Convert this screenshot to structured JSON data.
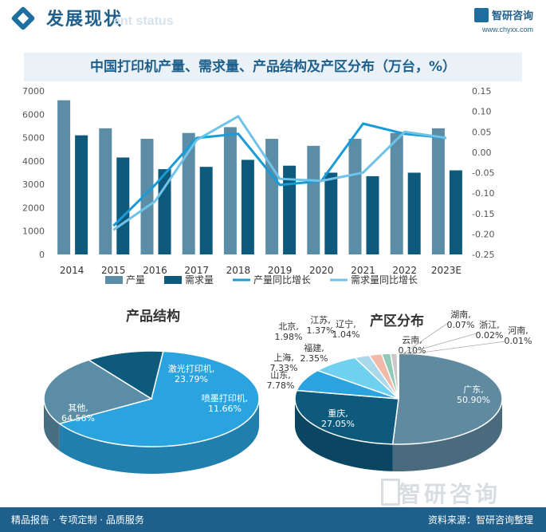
{
  "header": {
    "title": "发展现状",
    "subtitle": "ent status",
    "brand_name": "智研咨询",
    "brand_url": "www.chyxx.com"
  },
  "chart_title": "中国打印机产量、需求量、产品结构及产区分布（万台，%）",
  "chart_data": [
    {
      "type": "bar",
      "categories": [
        "2014",
        "2015",
        "2016",
        "2017",
        "2018",
        "2019",
        "2020",
        "2021",
        "2022",
        "2023E"
      ],
      "series": [
        {
          "name": "产量",
          "kind": "bar",
          "axis": "left",
          "color": "#5b8ea6",
          "values": [
            6600,
            5400,
            4950,
            5200,
            5450,
            4950,
            4650,
            4950,
            5200,
            5400
          ]
        },
        {
          "name": "需求量",
          "kind": "bar",
          "axis": "left",
          "color": "#0d5a7d",
          "values": [
            5100,
            4150,
            3650,
            3750,
            4050,
            3800,
            3500,
            3350,
            3500,
            3600
          ]
        },
        {
          "name": "产量同比增长",
          "kind": "line",
          "axis": "right",
          "color": "#1a9bd7",
          "values": [
            null,
            -0.18,
            -0.08,
            0.035,
            0.045,
            -0.08,
            -0.07,
            0.07,
            0.045,
            0.035
          ]
        },
        {
          "name": "需求量同比增长",
          "kind": "line",
          "axis": "right",
          "color": "#6fc3e8",
          "values": [
            null,
            -0.19,
            -0.12,
            0.03,
            0.088,
            -0.065,
            -0.07,
            -0.05,
            0.05,
            0.035
          ]
        }
      ],
      "ylim": [
        0,
        7000
      ],
      "yticks": [
        "0",
        "1000",
        "2000",
        "3000",
        "4000",
        "5000",
        "6000",
        "7000"
      ],
      "y2lim": [
        -0.25,
        0.15
      ],
      "y2ticks": [
        "-0.25",
        "-0.20",
        "-0.15",
        "-0.10",
        "-0.05",
        "0.00",
        "0.05",
        "0.10",
        "0.15"
      ],
      "legend_position": "bottom",
      "grid": false
    },
    {
      "type": "pie",
      "title": "产品结构",
      "style": "3d",
      "slices": [
        {
          "label": "其他",
          "value": 64.56,
          "text": "64.56%",
          "color": "#2aa3de"
        },
        {
          "label": "激光打印机",
          "value": 23.79,
          "text": "23.79%",
          "color": "#5b8ea6"
        },
        {
          "label": "喷墨打印机",
          "value": 11.66,
          "text": "11.66%",
          "color": "#0d5a7d"
        }
      ]
    },
    {
      "type": "pie",
      "title": "产区分布",
      "style": "3d",
      "slices": [
        {
          "label": "广东",
          "value": 50.9,
          "text": "50.90%",
          "color": "#5f8aa0"
        },
        {
          "label": "重庆",
          "value": 27.05,
          "text": "27.05%",
          "color": "#0d5a7d"
        },
        {
          "label": "山东",
          "value": 7.78,
          "text": "7.78%",
          "color": "#2aa3de"
        },
        {
          "label": "上海",
          "value": 7.33,
          "text": "7.33%",
          "color": "#6fd0ef"
        },
        {
          "label": "福建",
          "value": 2.35,
          "text": "2.35%",
          "color": "#a8d8ea"
        },
        {
          "label": "北京",
          "value": 1.98,
          "text": "1.98%",
          "color": "#f2b8a8"
        },
        {
          "label": "江苏",
          "value": 1.37,
          "text": "1.37%",
          "color": "#8fc9b8"
        },
        {
          "label": "辽宁",
          "value": 1.04,
          "text": "1.04%",
          "color": "#c9c9c9"
        },
        {
          "label": "云南",
          "value": 0.1,
          "text": "0.10%",
          "color": "#e8d79a"
        },
        {
          "label": "湖南",
          "value": 0.07,
          "text": "0.07%",
          "color": "#b0a6cf"
        },
        {
          "label": "浙江",
          "value": 0.02,
          "text": "0.02%",
          "color": "#d9a7c7"
        },
        {
          "label": "河南",
          "value": 0.01,
          "text": "0.01%",
          "color": "#9ab0c4"
        }
      ]
    }
  ],
  "footer": {
    "left": "精品报告 · 专项定制 · 品质服务",
    "right": "资料来源：智研咨询整理",
    "watermark": "智研咨询"
  }
}
